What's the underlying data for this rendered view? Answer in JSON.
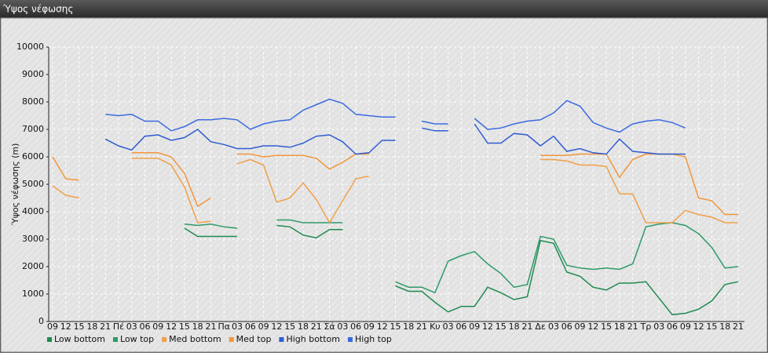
{
  "window_title": "Ύψος νέφωσης",
  "chart_data": {
    "type": "line",
    "ylabel": "Ύψος νέφωσης (m)",
    "categories": [
      "09",
      "12",
      "15",
      "18",
      "21",
      "Πέ",
      "03",
      "06",
      "09",
      "12",
      "15",
      "18",
      "21",
      "Πα",
      "03",
      "06",
      "09",
      "12",
      "15",
      "18",
      "21",
      "Σά",
      "03",
      "06",
      "09",
      "12",
      "15",
      "18",
      "21",
      "Κυ",
      "03",
      "06",
      "09",
      "12",
      "15",
      "18",
      "21",
      "Δε",
      "03",
      "06",
      "09",
      "12",
      "15",
      "18",
      "21",
      "Τρ",
      "03",
      "06",
      "09",
      "12",
      "15",
      "18",
      "21"
    ],
    "ylim": [
      0,
      10000
    ],
    "yticks": [
      0,
      1000,
      2000,
      3000,
      4000,
      5000,
      6000,
      7000,
      8000,
      9000,
      10000
    ],
    "grid": true,
    "legend": "bottom",
    "series": [
      {
        "name": "Low bottom",
        "color": "#1f8a50",
        "values": [
          null,
          null,
          null,
          null,
          null,
          null,
          null,
          null,
          null,
          null,
          3400,
          3100,
          3100,
          3100,
          3100,
          null,
          null,
          3500,
          3450,
          3150,
          3050,
          3350,
          3350,
          null,
          null,
          null,
          1300,
          1100,
          1100,
          700,
          350,
          550,
          550,
          1250,
          1050,
          800,
          900,
          2950,
          2850,
          1800,
          1650,
          1250,
          1150,
          1400,
          1400,
          1450,
          850,
          250,
          300,
          450,
          750,
          1350,
          1450
        ]
      },
      {
        "name": "Low top",
        "color": "#2e9a68",
        "values": [
          null,
          null,
          null,
          null,
          null,
          null,
          null,
          null,
          null,
          null,
          3550,
          3500,
          3550,
          3450,
          3400,
          null,
          null,
          3700,
          3700,
          3600,
          3600,
          3600,
          3600,
          null,
          null,
          null,
          1450,
          1250,
          1250,
          1050,
          2200,
          2400,
          2550,
          2100,
          1750,
          1250,
          1350,
          3100,
          3000,
          2050,
          1950,
          1900,
          1950,
          1900,
          2100,
          3450,
          3550,
          3600,
          3500,
          3200,
          2700,
          1950,
          2000
        ]
      },
      {
        "name": "Med bottom",
        "color": "#f0a048",
        "values": [
          4950,
          4600,
          4500,
          null,
          null,
          null,
          5950,
          5950,
          5950,
          5700,
          4900,
          3600,
          3650,
          null,
          5750,
          5900,
          5700,
          4350,
          4500,
          5050,
          4450,
          3600,
          4400,
          5200,
          5300,
          null,
          null,
          null,
          null,
          null,
          null,
          null,
          null,
          null,
          null,
          null,
          null,
          5900,
          5900,
          5850,
          5700,
          5700,
          5650,
          4650,
          4650,
          3600,
          3600,
          3600,
          4050,
          3900,
          3800,
          3600,
          3600
        ]
      },
      {
        "name": "Med top",
        "color": "#f2963a",
        "values": [
          6000,
          5200,
          5150,
          null,
          null,
          null,
          6150,
          6150,
          6150,
          6000,
          5400,
          4200,
          4500,
          null,
          6100,
          6100,
          6000,
          6050,
          6050,
          6050,
          5950,
          5550,
          5800,
          6100,
          6100,
          null,
          null,
          null,
          null,
          null,
          null,
          null,
          null,
          null,
          null,
          null,
          null,
          6050,
          6050,
          6050,
          6100,
          6100,
          6100,
          5250,
          5900,
          6100,
          6100,
          6100,
          6000,
          4500,
          4400,
          3900,
          3900
        ]
      },
      {
        "name": "High bottom",
        "color": "#2f5cd0",
        "values": [
          null,
          null,
          null,
          null,
          6650,
          6400,
          6250,
          6750,
          6800,
          6600,
          6700,
          7000,
          6550,
          6450,
          6300,
          6300,
          6400,
          6400,
          6350,
          6500,
          6750,
          6800,
          6550,
          6100,
          6150,
          6600,
          6600,
          null,
          7050,
          6950,
          6950,
          null,
          7200,
          6500,
          6500,
          6850,
          6800,
          6400,
          6750,
          6200,
          6300,
          6150,
          6100,
          6650,
          6200,
          6150,
          6100,
          6100,
          6100,
          null,
          null,
          null,
          null
        ]
      },
      {
        "name": "High top",
        "color": "#3b6ae0",
        "values": [
          null,
          null,
          null,
          null,
          7550,
          7500,
          7550,
          7300,
          7300,
          6950,
          7100,
          7350,
          7350,
          7400,
          7350,
          7000,
          7200,
          7300,
          7350,
          7700,
          7900,
          8100,
          7950,
          7550,
          7500,
          7450,
          7450,
          null,
          7300,
          7200,
          7200,
          null,
          7400,
          7000,
          7050,
          7200,
          7300,
          7350,
          7600,
          8050,
          7850,
          7250,
          7050,
          6900,
          7200,
          7300,
          7350,
          7250,
          7050,
          null,
          null,
          null,
          null
        ]
      }
    ]
  }
}
